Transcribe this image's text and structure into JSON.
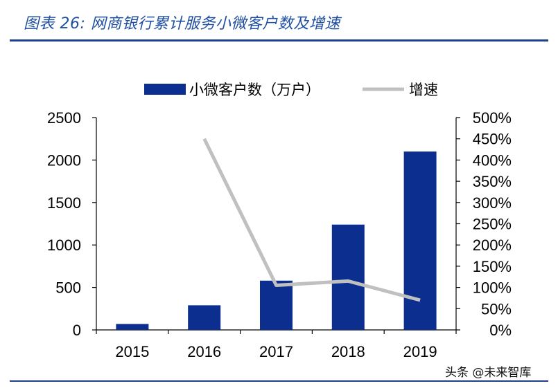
{
  "figure": {
    "title": "图表 26:  网商银行累计服务小微客户数及增速"
  },
  "watermark": "头条 @未来智库",
  "colors": {
    "bar": "#0b2e8f",
    "line": "#c0c0c0",
    "rule": "#1f3f8f",
    "title": "#1f4fa3"
  },
  "chart_data": {
    "type": "bar",
    "categories": [
      "2015",
      "2016",
      "2017",
      "2018",
      "2019"
    ],
    "series": [
      {
        "name": "小微客户数（万户）",
        "type": "bar",
        "axis": "left",
        "values": [
          70,
          290,
          580,
          1240,
          2100
        ]
      },
      {
        "name": "增速",
        "type": "line",
        "axis": "right",
        "values": [
          null,
          450,
          105,
          115,
          70
        ]
      }
    ],
    "ylim": [
      0,
      2500
    ],
    "yticks": [
      "0",
      "500",
      "1000",
      "1500",
      "2000",
      "2500"
    ],
    "y2lim": [
      0,
      500
    ],
    "y2ticks": [
      "0%",
      "50%",
      "100%",
      "150%",
      "200%",
      "250%",
      "300%",
      "350%",
      "400%",
      "450%",
      "500%"
    ],
    "legend_position": "top",
    "grid": false
  }
}
